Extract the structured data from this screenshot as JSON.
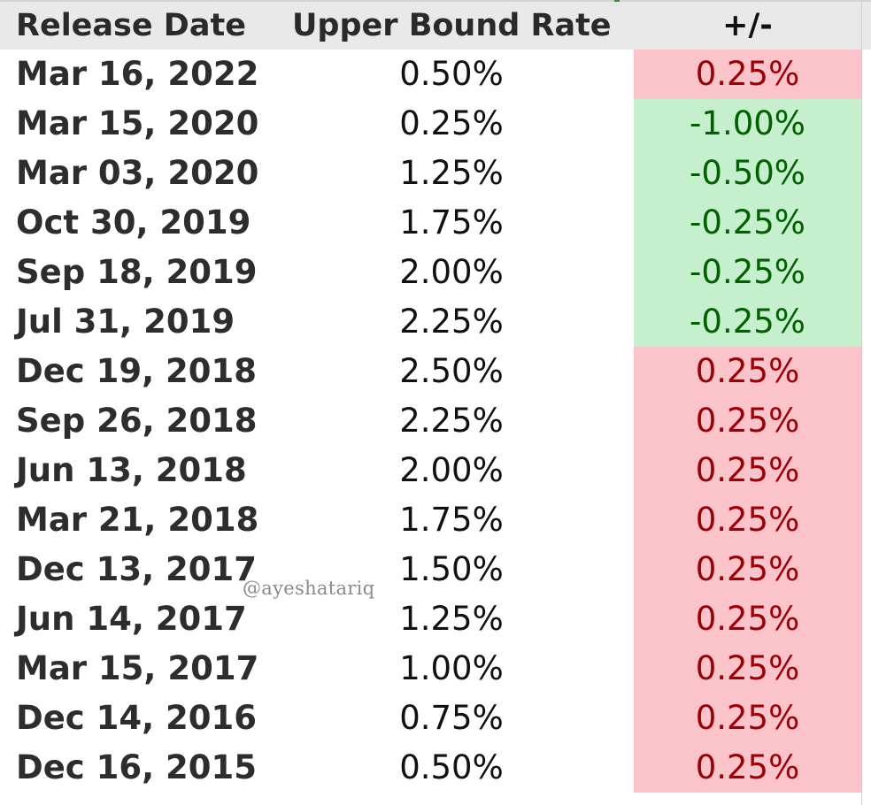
{
  "table": {
    "headers": {
      "date": "Release Date",
      "rate": "Upper Bound Rate",
      "change": "+/-"
    },
    "rows": [
      {
        "date": "Mar 16, 2022",
        "rate": "0.50%",
        "change": "0.25%",
        "direction": "up"
      },
      {
        "date": "Mar 15, 2020",
        "rate": "0.25%",
        "change": "-1.00%",
        "direction": "down"
      },
      {
        "date": "Mar 03, 2020",
        "rate": "1.25%",
        "change": "-0.50%",
        "direction": "down"
      },
      {
        "date": "Oct 30, 2019",
        "rate": "1.75%",
        "change": "-0.25%",
        "direction": "down"
      },
      {
        "date": "Sep 18, 2019",
        "rate": "2.00%",
        "change": "-0.25%",
        "direction": "down"
      },
      {
        "date": "Jul 31, 2019",
        "rate": "2.25%",
        "change": "-0.25%",
        "direction": "down"
      },
      {
        "date": "Dec 19, 2018",
        "rate": "2.50%",
        "change": "0.25%",
        "direction": "up"
      },
      {
        "date": "Sep 26, 2018",
        "rate": "2.25%",
        "change": "0.25%",
        "direction": "up"
      },
      {
        "date": "Jun 13, 2018",
        "rate": "2.00%",
        "change": "0.25%",
        "direction": "up"
      },
      {
        "date": "Mar 21, 2018",
        "rate": "1.75%",
        "change": "0.25%",
        "direction": "up"
      },
      {
        "date": "Dec 13, 2017",
        "rate": "1.50%",
        "change": "0.25%",
        "direction": "up"
      },
      {
        "date": "Jun 14, 2017",
        "rate": "1.25%",
        "change": "0.25%",
        "direction": "up"
      },
      {
        "date": "Mar 15, 2017",
        "rate": "1.00%",
        "change": "0.25%",
        "direction": "up"
      },
      {
        "date": "Dec 14, 2016",
        "rate": "0.75%",
        "change": "0.25%",
        "direction": "up"
      },
      {
        "date": "Dec 16, 2015",
        "rate": "0.50%",
        "change": "0.25%",
        "direction": "up"
      }
    ]
  },
  "watermark": "@ayeshatariq",
  "colors": {
    "increase_fill": "#fbc4cb",
    "increase_text": "#9c0006",
    "decrease_fill": "#c6efce",
    "decrease_text": "#006100",
    "header_fill": "#e9e9e9"
  }
}
